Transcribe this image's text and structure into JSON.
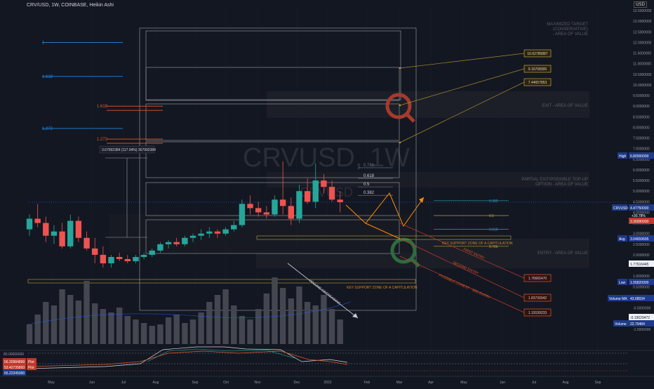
{
  "header": {
    "title": "CRV/USD, 1W, COINBASE, Heikin Ashi",
    "currency_tag": "USD"
  },
  "watermark": {
    "symbol": "CRVUSD, 1W",
    "sub": "CRVUSD"
  },
  "colors": {
    "background": "#131722",
    "up": "#26a69a",
    "down": "#ef5350",
    "volume": "#444750",
    "fib_blue": "#1e88e5",
    "fib_red": "#e05a26",
    "orange": "#ff8c00",
    "gold": "#c4a238"
  },
  "chart_data": {
    "type": "candlestick",
    "title": "CRV/USD, 1W, COINBASE, Heikin Ashi",
    "ylim": [
      -2.2,
      13.6
    ],
    "y_ticks": [
      "13.5000000",
      "13.0000000",
      "12.5000000",
      "12.0000000",
      "11.5000000",
      "11.0000000",
      "10.5000000",
      "10.0000000",
      "9.5000000",
      "9.0000000",
      "8.5000000",
      "8.0000000",
      "7.5000000",
      "7.0000000",
      "6.5000000",
      "6.0000000",
      "5.5000000",
      "5.0000000",
      "4.5000000",
      "4.0000000",
      "3.5000000",
      "3.0000000",
      "2.5000000",
      "2.0000000",
      "1.5000000",
      "1.0000000",
      "0.5000000",
      "0.0000000",
      "-0.5000000",
      "-1.0000000",
      "-1.5000000"
    ],
    "y_tick_values": [
      13.5,
      13,
      12.5,
      12,
      11.5,
      11,
      10.5,
      10,
      9.5,
      9,
      8.5,
      8,
      7.5,
      7,
      6.5,
      6,
      5.5,
      5,
      4.5,
      4,
      3.5,
      3,
      2.5,
      2,
      1.5,
      1,
      0.5,
      0,
      -0.5,
      -1,
      -1.5
    ],
    "x_labels": [
      "May",
      "Jun",
      "Jul",
      "Aug",
      "Sep",
      "Oct",
      "Nov",
      "Dec",
      "2022",
      "Feb",
      "Mar",
      "Apr",
      "May",
      "Jun",
      "Jul",
      "Aug",
      "Sep"
    ],
    "candles": [
      {
        "o": 3.2,
        "h": 3.9,
        "l": 2.9,
        "c": 3.7
      },
      {
        "o": 3.7,
        "h": 4.4,
        "l": 3.3,
        "c": 3.5
      },
      {
        "o": 3.5,
        "h": 3.8,
        "l": 2.6,
        "c": 2.9
      },
      {
        "o": 2.9,
        "h": 3.4,
        "l": 2.5,
        "c": 3.1
      },
      {
        "o": 3.1,
        "h": 3.5,
        "l": 2.3,
        "c": 2.4
      },
      {
        "o": 2.4,
        "h": 3.9,
        "l": 2.3,
        "c": 3.6
      },
      {
        "o": 3.6,
        "h": 3.8,
        "l": 2.6,
        "c": 2.8
      },
      {
        "o": 2.8,
        "h": 3.1,
        "l": 2.2,
        "c": 2.3
      },
      {
        "o": 2.3,
        "h": 2.8,
        "l": 1.6,
        "c": 2.0
      },
      {
        "o": 2.0,
        "h": 2.4,
        "l": 1.4,
        "c": 1.6
      },
      {
        "o": 1.6,
        "h": 2.0,
        "l": 1.4,
        "c": 1.9
      },
      {
        "o": 1.9,
        "h": 2.1,
        "l": 1.7,
        "c": 1.8
      },
      {
        "o": 1.8,
        "h": 2.0,
        "l": 1.6,
        "c": 1.7
      },
      {
        "o": 1.7,
        "h": 2.0,
        "l": 1.6,
        "c": 1.9
      },
      {
        "o": 1.9,
        "h": 2.1,
        "l": 1.8,
        "c": 2.0
      },
      {
        "o": 2.0,
        "h": 2.3,
        "l": 1.9,
        "c": 2.2
      },
      {
        "o": 2.2,
        "h": 2.6,
        "l": 2.1,
        "c": 2.5
      },
      {
        "o": 2.5,
        "h": 2.7,
        "l": 2.3,
        "c": 2.6
      },
      {
        "o": 2.6,
        "h": 2.8,
        "l": 2.4,
        "c": 2.5
      },
      {
        "o": 2.5,
        "h": 2.9,
        "l": 2.4,
        "c": 2.8
      },
      {
        "o": 2.8,
        "h": 3.0,
        "l": 2.6,
        "c": 2.9
      },
      {
        "o": 2.9,
        "h": 3.2,
        "l": 2.7,
        "c": 3.0
      },
      {
        "o": 3.0,
        "h": 3.3,
        "l": 2.8,
        "c": 3.1
      },
      {
        "o": 3.1,
        "h": 3.2,
        "l": 2.8,
        "c": 3.0
      },
      {
        "o": 3.0,
        "h": 3.3,
        "l": 2.9,
        "c": 3.2
      },
      {
        "o": 3.2,
        "h": 3.6,
        "l": 3.1,
        "c": 3.4
      },
      {
        "o": 3.4,
        "h": 4.6,
        "l": 3.3,
        "c": 4.4
      },
      {
        "o": 4.4,
        "h": 4.8,
        "l": 3.9,
        "c": 4.2
      },
      {
        "o": 4.2,
        "h": 4.5,
        "l": 3.8,
        "c": 4.0
      },
      {
        "o": 4.0,
        "h": 4.3,
        "l": 3.7,
        "c": 3.9
      },
      {
        "o": 3.9,
        "h": 4.8,
        "l": 3.8,
        "c": 4.6
      },
      {
        "o": 4.6,
        "h": 6.4,
        "l": 3.9,
        "c": 4.3
      },
      {
        "o": 4.3,
        "h": 4.7,
        "l": 3.4,
        "c": 3.7
      },
      {
        "o": 3.7,
        "h": 5.3,
        "l": 3.5,
        "c": 5.0
      },
      {
        "o": 5.0,
        "h": 5.6,
        "l": 4.4,
        "c": 4.5
      },
      {
        "o": 4.5,
        "h": 6.3,
        "l": 4.2,
        "c": 5.5
      },
      {
        "o": 5.5,
        "h": 5.8,
        "l": 4.9,
        "c": 5.2
      },
      {
        "o": 5.2,
        "h": 5.5,
        "l": 4.5,
        "c": 4.6
      },
      {
        "o": 4.6,
        "h": 5.0,
        "l": 4.0,
        "c": 4.48
      }
    ],
    "annotations": {
      "fib_left_blue": [
        "1",
        "1.618",
        "1.272"
      ],
      "fib_left_red": [
        "1.618",
        "1.272"
      ],
      "fib_mid": [
        "0.786",
        "0.618",
        "0.5",
        "0.382"
      ],
      "fib_right": [
        "0.382",
        "0.5",
        "0.618",
        "0.786"
      ],
      "range_label": "3.67992384 (117.94%) 367992384",
      "zones": [
        "MAXIMIZED TARGET (CONSERVATIVE) - AREA OF VALUE",
        "EXIT - AREA OF VALUE",
        "PARTIAL EXIT/POSSIBLE TOP-UP OPTION - AREA OF VALUE",
        "ENTRY - AREA OF VALUE"
      ],
      "support_labels": [
        "KEY SUPPORT ZONE OF A CAPITULATION",
        "KEY SUPPORT ZONE OF A CAPITULATION"
      ],
      "targets": [
        "10.62785887",
        "9.16708305",
        "7.44657853"
      ],
      "entries": [
        "1.76665470",
        "1.83730042",
        "1.19199233"
      ],
      "entry_labels": [
        "FIRST ENTRY",
        "SECOND ENTRY",
        "POSSIBLE LOWEST - 3RD ENTRY"
      ],
      "volume_note": "VOLUME DECREASING",
      "scale_tags": {
        "high_label": "High",
        "high_value": "6.80000000",
        "symbol_label": "CRVUSD",
        "price": "4.47750000",
        "change": "+30.78%",
        "countdown": "2d 10h",
        "sub_price": "3.36990000",
        "avg_label": "Avg",
        "avg_value": "3.04659695",
        "mid_value": "1.77616445",
        "low_label": "Low",
        "low_value": "1.05820000",
        "volma_label": "Volume MA",
        "volma_value": "43.68034",
        "neg_value": "-0.19029472",
        "vol_label": "Volume",
        "vol_value": "22.79484"
      }
    },
    "rsi_panel": {
      "top_value": "80.00000000",
      "labels": [
        "56.20984899",
        "Plot",
        "53.42735893",
        "Plot",
        "65.22345000"
      ]
    }
  }
}
